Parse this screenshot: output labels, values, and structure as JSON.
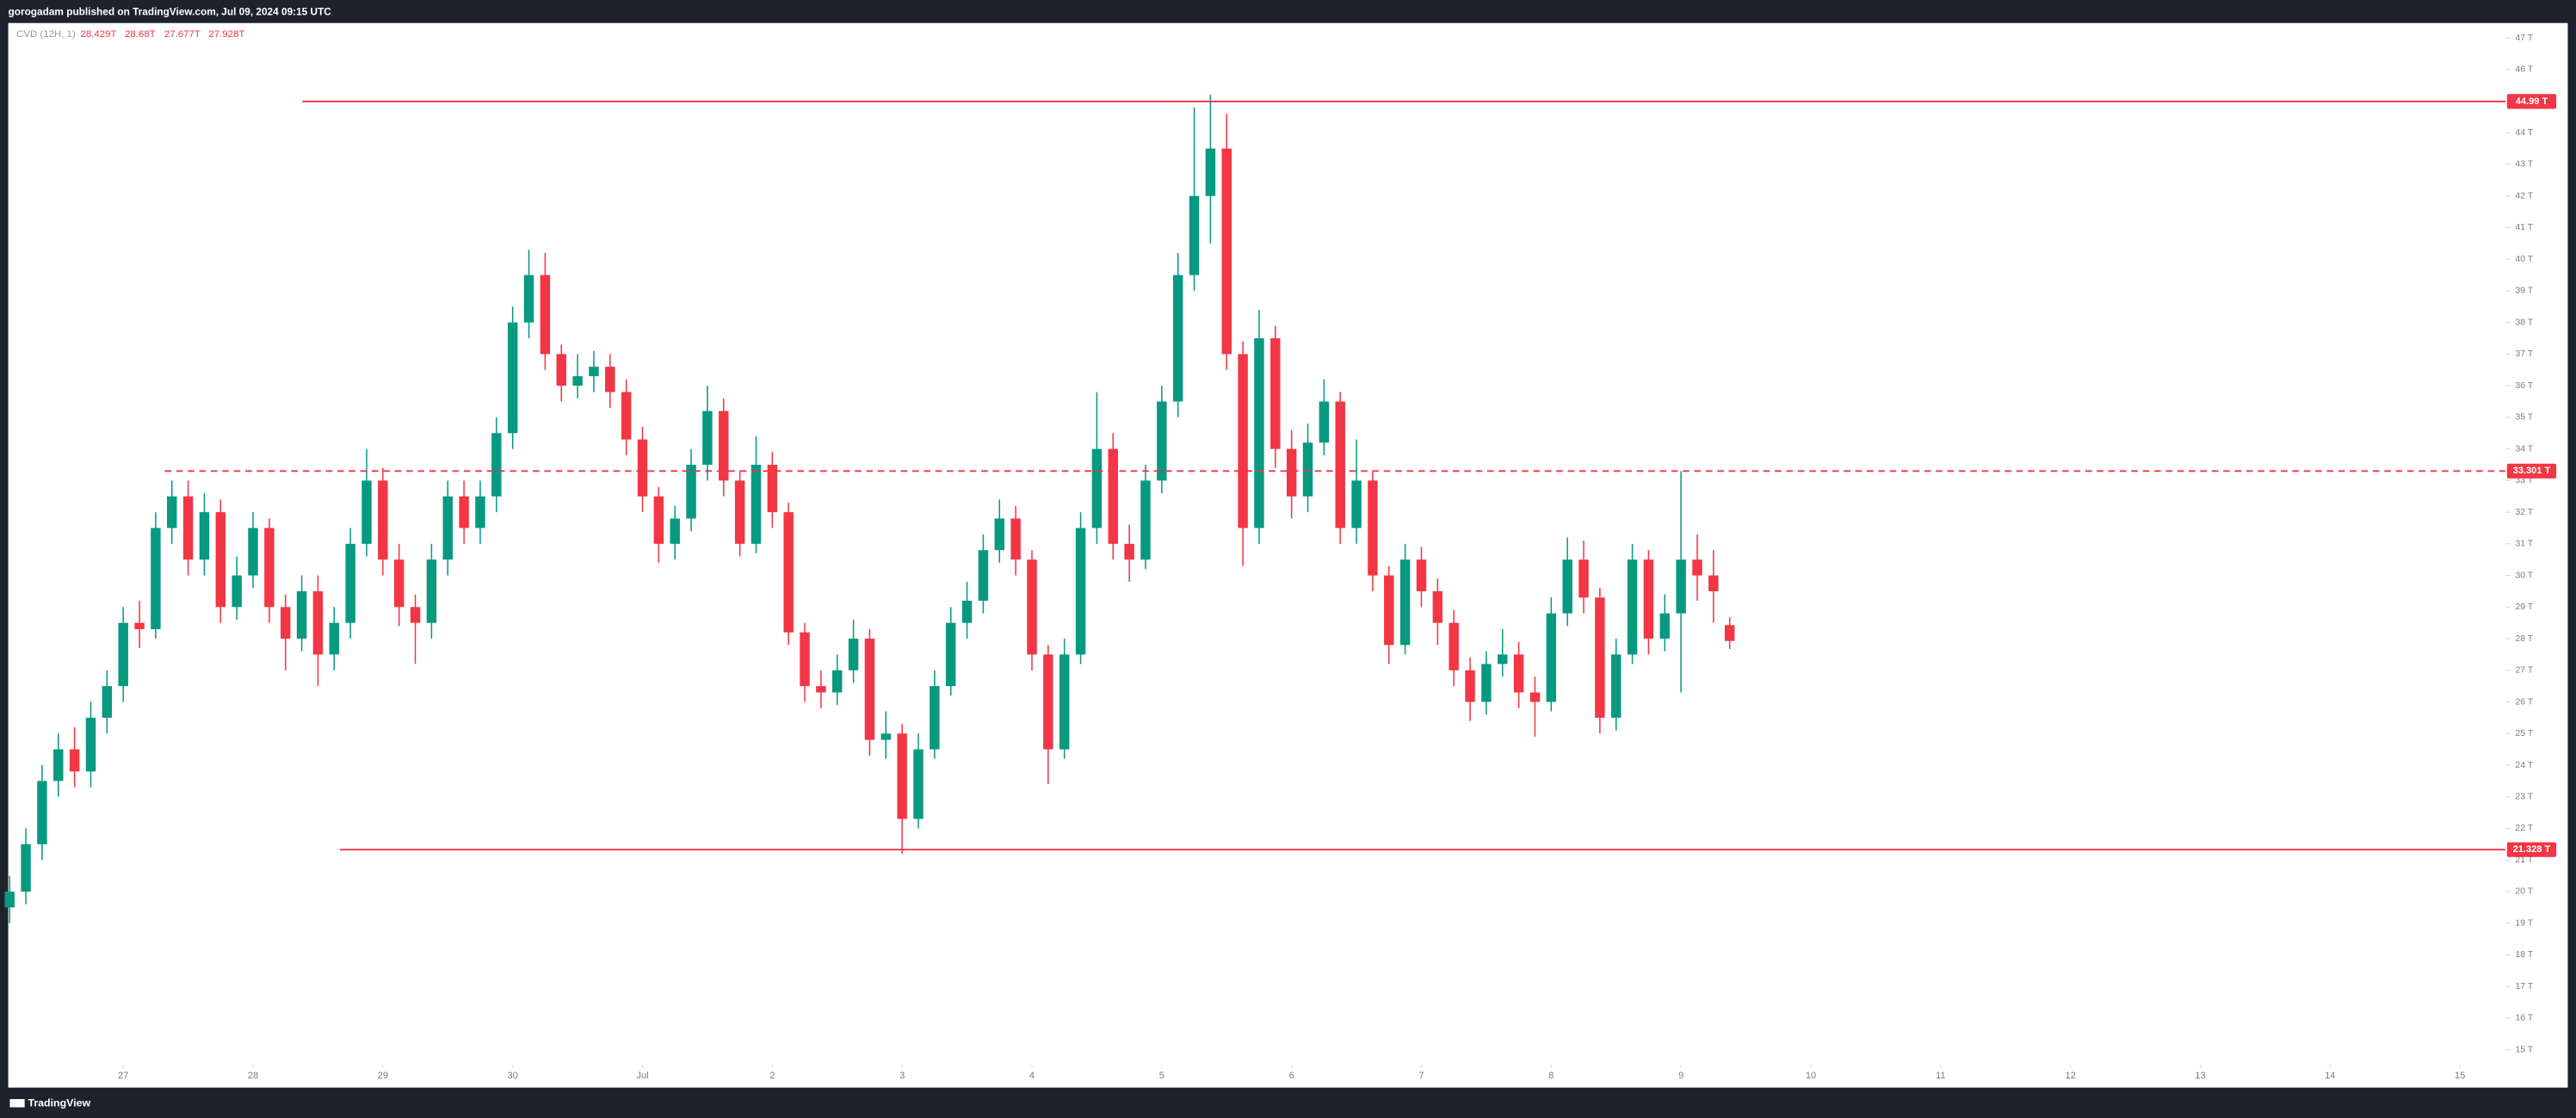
{
  "header": {
    "title": "gorogadam published on TradingView.com, Jul 09, 2024 09:15 UTC"
  },
  "footer": {
    "brand": "TradingView"
  },
  "chart_data": {
    "type": "candlestick",
    "indicator": "CVD (12H, 1)",
    "ohlc_labels": [
      "28.429T",
      "28.68T",
      "27.677T",
      "27.928T"
    ],
    "up_color": "#089981",
    "down_color": "#f23645",
    "x": [
      0.125,
      0.25,
      0.375,
      0.5,
      0.625,
      0.75,
      0.875,
      1,
      1.125,
      1.25,
      1.375,
      1.5,
      1.625,
      1.75,
      1.875,
      2,
      2.125,
      2.25,
      2.375,
      2.5,
      2.625,
      2.75,
      2.875,
      3,
      3.125,
      3.25,
      3.375,
      3.5,
      3.625,
      3.75,
      3.875,
      4,
      4.125,
      4.25,
      4.375,
      4.5,
      4.625,
      4.75,
      4.875,
      5,
      5.125,
      5.25,
      5.375,
      5.5,
      5.625,
      5.75,
      5.875,
      6,
      6.125,
      6.25,
      6.375,
      6.5,
      6.625,
      6.75,
      6.875,
      7,
      7.125,
      7.25,
      7.375,
      7.5,
      7.625,
      7.75,
      7.875,
      8,
      8.125,
      8.25,
      8.375,
      8.5,
      8.625,
      8.75,
      8.875,
      9,
      9.125,
      9.25,
      9.375,
      9.5,
      9.625,
      9.75,
      9.875,
      10,
      10.125,
      10.25,
      10.375,
      10.5,
      10.625,
      10.75,
      10.875,
      11,
      11.125,
      11.25,
      11.375,
      11.5,
      11.625,
      11.75,
      11.875,
      12,
      12.125,
      12.25,
      12.375,
      12.5,
      12.625,
      12.75,
      12.875,
      13,
      13.125,
      13.25,
      13.375
    ],
    "open": [
      19.5,
      20,
      21.5,
      23.5,
      24.5,
      23.8,
      25.5,
      26.5,
      28.5,
      28.3,
      31.5,
      32.5,
      30.5,
      32,
      29,
      30,
      31.5,
      29,
      28,
      29.5,
      27.5,
      28.5,
      31,
      33,
      30.5,
      29,
      28.5,
      30.5,
      32.5,
      31.5,
      32.5,
      34.5,
      38,
      39.5,
      37,
      36,
      36.3,
      36.6,
      35.8,
      34.3,
      32.5,
      31,
      31.8,
      33.5,
      35.2,
      33,
      31,
      33.5,
      32,
      28.2,
      26.5,
      26.3,
      27,
      28,
      24.8,
      25,
      22.3,
      24.5,
      26.5,
      28.5,
      29.2,
      30.8,
      31.8,
      30.5,
      27.5,
      24.5,
      27.5,
      31.5,
      34,
      31,
      30.5,
      33,
      35.5,
      39.5,
      42,
      43.5,
      37,
      31.5,
      37.5,
      34,
      32.5,
      34.2,
      35.5,
      31.5,
      33,
      30,
      27.8,
      30.5,
      29.5,
      28.5,
      27,
      26,
      27.2,
      27.5,
      26.3,
      26,
      28.8,
      30.5,
      29.3,
      25.5,
      27.5,
      30.5,
      28,
      28.8,
      30.5,
      30,
      28.429
    ],
    "high": [
      20.5,
      22,
      24,
      25,
      25.2,
      26,
      27,
      29,
      29.2,
      32,
      33,
      33,
      32.6,
      32.4,
      30.6,
      32,
      31.8,
      29.4,
      30,
      30,
      29,
      31.5,
      34,
      33.4,
      31,
      29.4,
      31,
      33,
      33,
      33,
      35,
      38.5,
      40.3,
      40.2,
      37.3,
      37,
      37.1,
      37,
      36.2,
      34.7,
      32.8,
      32.2,
      34,
      36,
      35.6,
      33.3,
      34.4,
      33.9,
      32.3,
      28.5,
      27,
      27.5,
      28.6,
      28.3,
      25.7,
      25.3,
      25,
      27,
      29,
      29.8,
      31.3,
      32.4,
      32.2,
      30.8,
      27.8,
      28,
      32,
      35.8,
      34.5,
      31.6,
      33.5,
      36,
      40.2,
      44.8,
      45.2,
      44.6,
      37.4,
      38.4,
      37.9,
      34.6,
      34.8,
      36.2,
      35.8,
      34.3,
      33.3,
      30.3,
      31,
      30.9,
      29.9,
      28.9,
      27.4,
      27.6,
      28.3,
      27.9,
      26.8,
      29.3,
      31.2,
      31.1,
      29.6,
      28,
      31,
      30.8,
      29.4,
      33.3,
      31.3,
      30.8,
      28.68
    ],
    "low": [
      19,
      19.6,
      21,
      23,
      23.3,
      23.3,
      25,
      26,
      27.7,
      28,
      31,
      30,
      30,
      28.5,
      28.6,
      29.6,
      28.5,
      27,
      27.6,
      26.5,
      27,
      28,
      30.6,
      30,
      28.4,
      27.2,
      28,
      30,
      31,
      31,
      32,
      34,
      37.5,
      36.5,
      35.5,
      35.6,
      35.8,
      35.3,
      33.8,
      32,
      30.4,
      30.5,
      31.4,
      33,
      32.5,
      30.6,
      30.7,
      31.5,
      27.8,
      26,
      25.8,
      25.9,
      26.6,
      24.3,
      24.2,
      21.2,
      22,
      24.2,
      26.2,
      28,
      28.8,
      30.4,
      30,
      27,
      23.4,
      24.2,
      27.2,
      31,
      30.5,
      29.8,
      30.2,
      32.6,
      35,
      39,
      40.5,
      36.5,
      30.3,
      31,
      33.4,
      31.8,
      32,
      33.8,
      31,
      31,
      29.5,
      27.2,
      27.5,
      29,
      27.8,
      26.5,
      25.4,
      25.6,
      26.8,
      25.8,
      24.9,
      25.7,
      28.4,
      28.8,
      25,
      25.1,
      27.2,
      27.5,
      27.6,
      26.3,
      29.2,
      28.5,
      27.677
    ],
    "close": [
      20,
      21.5,
      23.5,
      24.5,
      23.8,
      25.5,
      26.5,
      28.5,
      28.3,
      31.5,
      32.5,
      30.5,
      32,
      29,
      30,
      31.5,
      29,
      28,
      29.5,
      27.5,
      28.5,
      31,
      33,
      30.5,
      29,
      28.5,
      30.5,
      32.5,
      31.5,
      32.5,
      34.5,
      38,
      39.5,
      37,
      36,
      36.3,
      36.6,
      35.8,
      34.3,
      32.5,
      31,
      31.8,
      33.5,
      35.2,
      33,
      31,
      33.5,
      32,
      28.2,
      26.5,
      26.3,
      27,
      28,
      24.8,
      25,
      22.3,
      24.5,
      26.5,
      28.5,
      29.2,
      30.8,
      31.8,
      30.5,
      27.5,
      24.5,
      27.5,
      31.5,
      34,
      31,
      30.5,
      33,
      35.5,
      39.5,
      42,
      43.5,
      37,
      31.5,
      37.5,
      34,
      32.5,
      34.2,
      35.5,
      31.5,
      33,
      30,
      27.8,
      30.5,
      29.5,
      28.5,
      27,
      26,
      27.2,
      27.5,
      26.3,
      26,
      28.8,
      30.5,
      29.3,
      25.5,
      27.5,
      30.5,
      28,
      28.8,
      30.5,
      30,
      29.5,
      27.928
    ],
    "levels": [
      {
        "value": 44.99,
        "label": "44.99 T",
        "start": 2.38,
        "style": "solid",
        "color": "#f23645"
      },
      {
        "value": 33.301,
        "label": "33.301 T",
        "start": 1.32,
        "style": "dashed",
        "color": "#f23645"
      },
      {
        "value": 21.328,
        "label": "21.328 T",
        "start": 2.67,
        "style": "solid",
        "color": "#f23645"
      }
    ],
    "xlim": [
      0.114,
      19.35
    ],
    "xticks": [
      {
        "value": 1,
        "label": "27"
      },
      {
        "value": 2,
        "label": "28"
      },
      {
        "value": 3,
        "label": "29"
      },
      {
        "value": 4,
        "label": "30"
      },
      {
        "value": 5,
        "label": "Jul"
      },
      {
        "value": 6,
        "label": "2"
      },
      {
        "value": 7,
        "label": "3"
      },
      {
        "value": 8,
        "label": "4"
      },
      {
        "value": 9,
        "label": "5"
      },
      {
        "value": 10,
        "label": "6"
      },
      {
        "value": 11,
        "label": "7"
      },
      {
        "value": 12,
        "label": "8"
      },
      {
        "value": 13,
        "label": "9"
      },
      {
        "value": 14,
        "label": "10"
      },
      {
        "value": 15,
        "label": "11"
      },
      {
        "value": 16,
        "label": "12"
      },
      {
        "value": 17,
        "label": "13"
      },
      {
        "value": 18,
        "label": "14"
      },
      {
        "value": 19,
        "label": "15"
      }
    ],
    "ylim": [
      14.53,
      47.47
    ],
    "yticks": [
      {
        "value": 15,
        "label": "15 T"
      },
      {
        "value": 16,
        "label": "16 T"
      },
      {
        "value": 17,
        "label": "17 T"
      },
      {
        "value": 18,
        "label": "18 T"
      },
      {
        "value": 19,
        "label": "19 T"
      },
      {
        "value": 20,
        "label": "20 T"
      },
      {
        "value": 21,
        "label": "21 T"
      },
      {
        "value": 22,
        "label": "22 T"
      },
      {
        "value": 23,
        "label": "23 T"
      },
      {
        "value": 24,
        "label": "24 T"
      },
      {
        "value": 25,
        "label": "25 T"
      },
      {
        "value": 26,
        "label": "26 T"
      },
      {
        "value": 27,
        "label": "27 T"
      },
      {
        "value": 28,
        "label": "28 T"
      },
      {
        "value": 29,
        "label": "29 T"
      },
      {
        "value": 30,
        "label": "30 T"
      },
      {
        "value": 31,
        "label": "31 T"
      },
      {
        "value": 32,
        "label": "32 T"
      },
      {
        "value": 33,
        "label": "33 T"
      },
      {
        "value": 34,
        "label": "34 T"
      },
      {
        "value": 35,
        "label": "35 T"
      },
      {
        "value": 36,
        "label": "36 T"
      },
      {
        "value": 37,
        "label": "37 T"
      },
      {
        "value": 38,
        "label": "38 T"
      },
      {
        "value": 39,
        "label": "39 T"
      },
      {
        "value": 40,
        "label": "40 T"
      },
      {
        "value": 41,
        "label": "41 T"
      },
      {
        "value": 42,
        "label": "42 T"
      },
      {
        "value": 43,
        "label": "43 T"
      },
      {
        "value": 44,
        "label": "44 T"
      },
      {
        "value": 45,
        "label": "45 T"
      },
      {
        "value": 46,
        "label": "46 T"
      },
      {
        "value": 47,
        "label": "47 T"
      }
    ],
    "grid": false
  }
}
